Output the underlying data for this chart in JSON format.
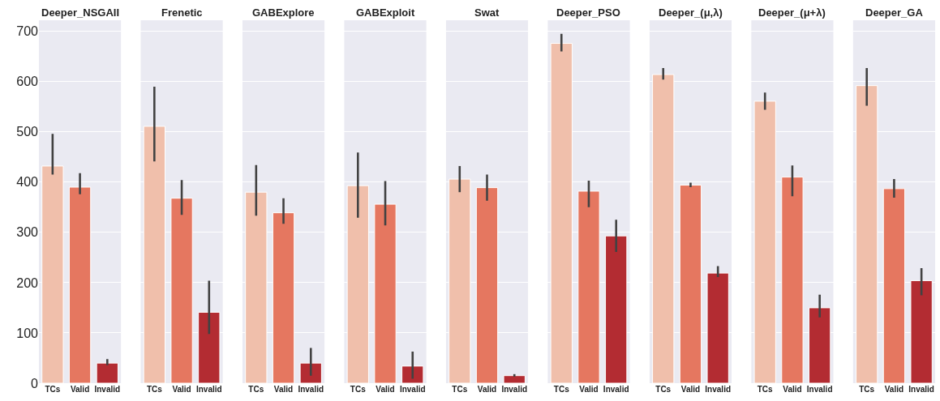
{
  "chart_data": [
    {
      "type": "bar",
      "title": "Deeper_NSGAII",
      "categories": [
        "TCs",
        "Valid",
        "Invalid"
      ],
      "values": [
        432,
        390,
        40
      ],
      "colors": [
        "#f0bfab",
        "#e57760",
        "#b32c32"
      ],
      "errors": [
        [
          415,
          496
        ],
        [
          376,
          418
        ],
        [
          36,
          48
        ]
      ],
      "ylim": [
        0,
        722
      ],
      "yticks": [
        0,
        100,
        200,
        300,
        400,
        500,
        600,
        700
      ],
      "grid": "y"
    },
    {
      "type": "bar",
      "title": "Frenetic",
      "categories": [
        "TCs",
        "Valid",
        "Invalid"
      ],
      "values": [
        511,
        368,
        141
      ],
      "colors": [
        "#f0bfab",
        "#e57760",
        "#b32c32"
      ],
      "errors": [
        [
          441,
          590
        ],
        [
          335,
          404
        ],
        [
          98,
          204
        ]
      ],
      "ylim": [
        0,
        722
      ],
      "yticks": [
        0,
        100,
        200,
        300,
        400,
        500,
        600,
        700
      ],
      "grid": "y",
      "tick_labels": "x"
    },
    {
      "type": "bar",
      "title": "GABExplore",
      "categories": [
        "TCs",
        "Valid",
        "Invalid"
      ],
      "values": [
        380,
        339,
        40
      ],
      "colors": [
        "#f0bfab",
        "#e57760",
        "#b32c32"
      ],
      "errors": [
        [
          333,
          434
        ],
        [
          317,
          368
        ],
        [
          15,
          70
        ]
      ],
      "ylim": [
        0,
        722
      ],
      "yticks": [
        0,
        100,
        200,
        300,
        400,
        500,
        600,
        700
      ],
      "grid": "y",
      "tick_labels": "x"
    },
    {
      "type": "bar",
      "title": "GABExploit",
      "categories": [
        "TCs",
        "Valid",
        "Invalid"
      ],
      "values": [
        393,
        356,
        34
      ],
      "colors": [
        "#f0bfab",
        "#e57760",
        "#b32c32"
      ],
      "errors": [
        [
          329,
          459
        ],
        [
          314,
          402
        ],
        [
          9,
          63
        ]
      ],
      "ylim": [
        0,
        722
      ],
      "yticks": [
        0,
        100,
        200,
        300,
        400,
        500,
        600,
        700
      ],
      "grid": "y",
      "tick_labels": "x"
    },
    {
      "type": "bar",
      "title": "Swat",
      "categories": [
        "TCs",
        "Valid",
        "Invalid"
      ],
      "values": [
        406,
        389,
        15
      ],
      "colors": [
        "#f0bfab",
        "#e57760",
        "#b32c32"
      ],
      "errors": [
        [
          380,
          432
        ],
        [
          363,
          415
        ],
        [
          13,
          18
        ]
      ],
      "ylim": [
        0,
        722
      ],
      "yticks": [
        0,
        100,
        200,
        300,
        400,
        500,
        600,
        700
      ],
      "grid": "y",
      "tick_labels": "x"
    },
    {
      "type": "bar",
      "title": "Deeper_PSO",
      "categories": [
        "TCs",
        "Valid",
        "Invalid"
      ],
      "values": [
        676,
        382,
        293
      ],
      "colors": [
        "#f0bfab",
        "#e57760",
        "#b32c32"
      ],
      "errors": [
        [
          660,
          695
        ],
        [
          350,
          403
        ],
        [
          261,
          325
        ]
      ],
      "ylim": [
        0,
        722
      ],
      "yticks": [
        0,
        100,
        200,
        300,
        400,
        500,
        600,
        700
      ],
      "grid": "y",
      "tick_labels": "x"
    },
    {
      "type": "bar",
      "title": "Deeper_(μ,λ)",
      "categories": [
        "TCs",
        "Valid",
        "Invalid"
      ],
      "values": [
        614,
        394,
        219
      ],
      "colors": [
        "#f0bfab",
        "#e57760",
        "#b32c32"
      ],
      "errors": [
        [
          604,
          627
        ],
        [
          390,
          399
        ],
        [
          211,
          233
        ]
      ],
      "ylim": [
        0,
        722
      ],
      "yticks": [
        0,
        100,
        200,
        300,
        400,
        500,
        600,
        700
      ],
      "grid": "y",
      "tick_labels": "x"
    },
    {
      "type": "bar",
      "title": "Deeper_(μ+λ)",
      "categories": [
        "TCs",
        "Valid",
        "Invalid"
      ],
      "values": [
        561,
        410,
        150
      ],
      "colors": [
        "#f0bfab",
        "#e57760",
        "#b32c32"
      ],
      "errors": [
        [
          544,
          578
        ],
        [
          372,
          433
        ],
        [
          131,
          176
        ]
      ],
      "ylim": [
        0,
        722
      ],
      "yticks": [
        0,
        100,
        200,
        300,
        400,
        500,
        600,
        700
      ],
      "grid": "y",
      "tick_labels": "x"
    },
    {
      "type": "bar",
      "title": "Deeper_GA",
      "categories": [
        "TCs",
        "Valid",
        "Invalid"
      ],
      "values": [
        592,
        387,
        204
      ],
      "colors": [
        "#f0bfab",
        "#e57760",
        "#b32c32"
      ],
      "errors": [
        [
          552,
          627
        ],
        [
          369,
          406
        ],
        [
          175,
          229
        ]
      ],
      "ylim": [
        0,
        722
      ],
      "yticks": [
        0,
        100,
        200,
        300,
        400,
        500,
        600,
        700
      ],
      "grid": "y",
      "tick_labels": "x"
    }
  ]
}
